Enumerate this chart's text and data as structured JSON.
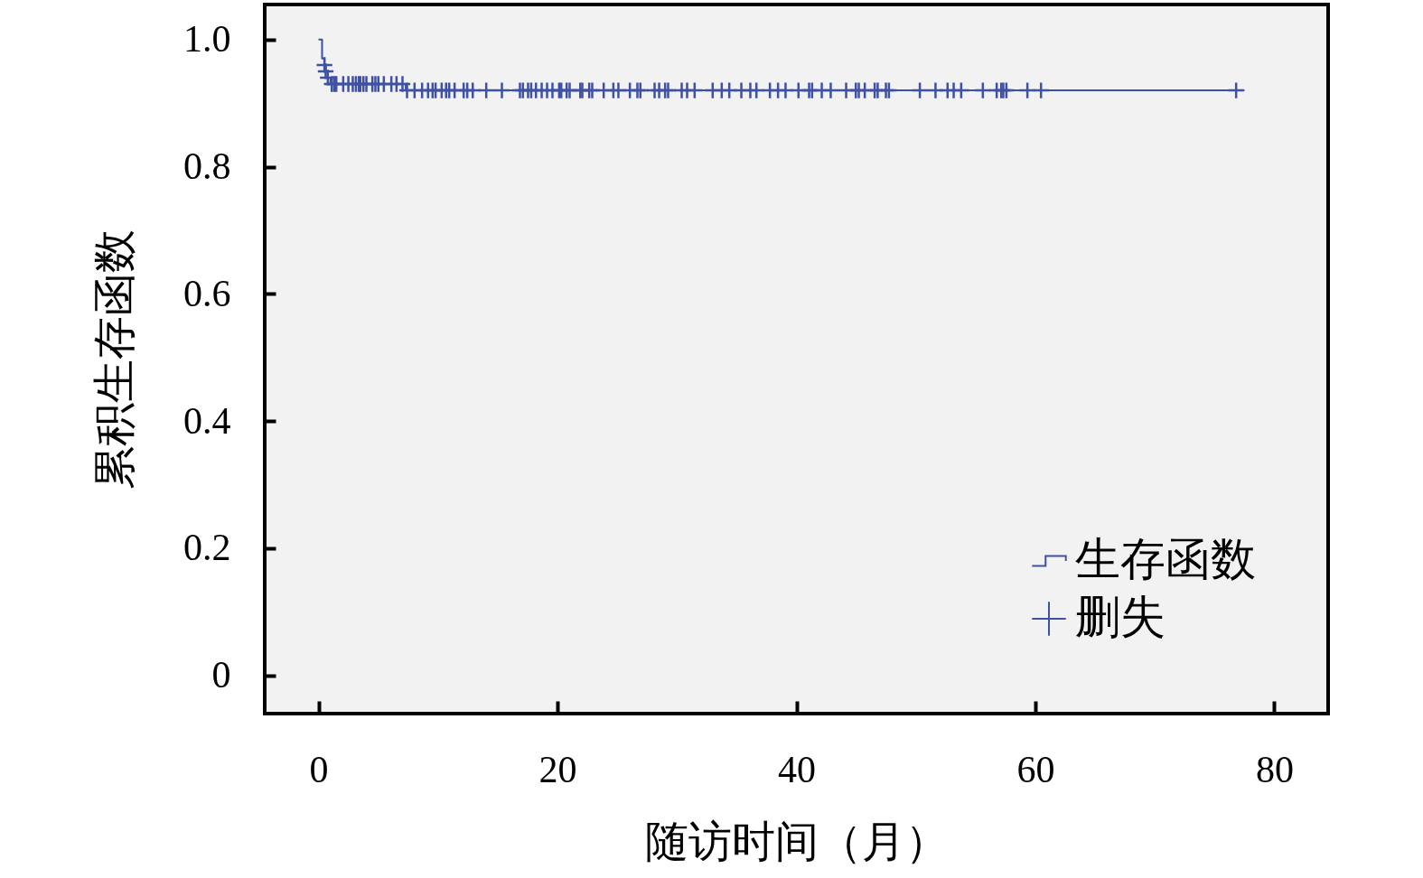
{
  "chart_data": {
    "type": "step",
    "xlabel": "随访时间（月）",
    "ylabel": "累积生存函数",
    "xlim": [
      -4.5,
      84.5
    ],
    "ylim": [
      -0.06,
      1.055
    ],
    "xticks": [
      0,
      20,
      40,
      60,
      80
    ],
    "yticks": [
      {
        "value": 0,
        "label": "0"
      },
      {
        "value": 0.2,
        "label": "0.2"
      },
      {
        "value": 0.4,
        "label": "0.4"
      },
      {
        "value": 0.6,
        "label": "0.6"
      },
      {
        "value": 0.8,
        "label": "0.8"
      },
      {
        "value": 1,
        "label": "1.0"
      }
    ],
    "grid": false,
    "legend": "bottom right",
    "series": [
      {
        "name": "生存函数",
        "color": "#3f51a5",
        "x": [
          0,
          0.3,
          0.5,
          0.6,
          0.78,
          1.0,
          7.3,
          77.5
        ],
        "values": [
          1,
          0.97,
          0.96,
          0.95,
          0.94,
          0.93,
          0.92,
          0.92
        ]
      },
      {
        "name": "删失",
        "type": "scatter",
        "marker": "cross",
        "color": "#3f51a5",
        "x": [
          0.5,
          0.6,
          0.78,
          1.11,
          1.31,
          1.49,
          2.07,
          2.5,
          2.87,
          3.13,
          3.38,
          3.5,
          3.76,
          4.01,
          4.51,
          4.76,
          5.01,
          5.47,
          6.1,
          6.53,
          7.03,
          7.41,
          8.04,
          8.67,
          9.17,
          9.55,
          9.8,
          10.31,
          10.68,
          10.94,
          11.39,
          12.15,
          12.45,
          12.91,
          14.04,
          15.35,
          16.86,
          17.11,
          17.54,
          17.8,
          18.2,
          18.68,
          19.13,
          19.58,
          20.14,
          20.32,
          20.77,
          21.02,
          21.91,
          22.08,
          22.66,
          22.91,
          23.87,
          24.68,
          25.1,
          26.06,
          26.69,
          26.94,
          28.13,
          28.51,
          29.01,
          29.26,
          30.4,
          30.85,
          31.48,
          32.99,
          33.75,
          34.38,
          35.39,
          36.14,
          36.65,
          37.78,
          38.46,
          39.09,
          40.17,
          41.06,
          41.31,
          42.12,
          42.87,
          44.16,
          44.97,
          45.22,
          45.72,
          46.55,
          46.8,
          47.49,
          47.74,
          50.33,
          51.64,
          52.65,
          53.16,
          53.79,
          55.6,
          56.76,
          57.14,
          57.31,
          57.57,
          59.33,
          60.47,
          76.8
        ],
        "values": [
          0.96,
          0.95,
          0.94,
          0.93,
          0.93,
          0.93,
          0.93,
          0.93,
          0.93,
          0.93,
          0.93,
          0.93,
          0.93,
          0.93,
          0.93,
          0.93,
          0.93,
          0.93,
          0.93,
          0.93,
          0.93,
          0.92,
          0.92,
          0.92,
          0.92,
          0.92,
          0.92,
          0.92,
          0.92,
          0.92,
          0.92,
          0.92,
          0.92,
          0.92,
          0.92,
          0.92,
          0.92,
          0.92,
          0.92,
          0.92,
          0.92,
          0.92,
          0.92,
          0.92,
          0.92,
          0.92,
          0.92,
          0.92,
          0.92,
          0.92,
          0.92,
          0.92,
          0.92,
          0.92,
          0.92,
          0.92,
          0.92,
          0.92,
          0.92,
          0.92,
          0.92,
          0.92,
          0.92,
          0.92,
          0.92,
          0.92,
          0.92,
          0.92,
          0.92,
          0.92,
          0.92,
          0.92,
          0.92,
          0.92,
          0.92,
          0.92,
          0.92,
          0.92,
          0.92,
          0.92,
          0.92,
          0.92,
          0.92,
          0.92,
          0.92,
          0.92,
          0.92,
          0.92,
          0.92,
          0.92,
          0.92,
          0.92,
          0.92,
          0.92,
          0.92,
          0.92,
          0.92,
          0.92,
          0.92,
          0.92
        ]
      }
    ]
  }
}
